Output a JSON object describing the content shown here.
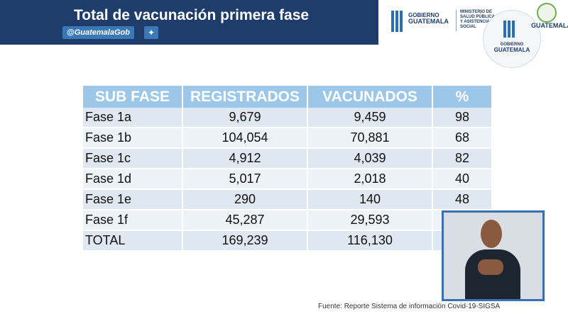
{
  "header": {
    "title": "Total de vacunación primera fase",
    "handle": "@GuatemalaGob",
    "twitter_icon": "twitter-bird"
  },
  "logos": {
    "gov_line1": "GOBIERNO",
    "gov_line2": "GUATEMALA",
    "ministry_line1": "MINISTERIO DE",
    "ministry_line2": "SALUD PÚBLICA",
    "ministry_line3": "Y ASISTENCIA",
    "ministry_line4": "SOCIAL",
    "seal_line1": "GOBIERNO",
    "seal_line2": "GUATEMALA",
    "corner_line2": "GUATEMALA"
  },
  "table": {
    "headers": [
      "SUB FASE",
      "REGISTRADOS",
      "VACUNADOS",
      "%"
    ],
    "rows": [
      [
        "Fase 1a",
        "9,679",
        "9,459",
        "98"
      ],
      [
        "Fase 1b",
        "104,054",
        "70,881",
        "68"
      ],
      [
        "Fase 1c",
        "4,912",
        "4,039",
        "82"
      ],
      [
        "Fase 1d",
        "5,017",
        "2,018",
        "40"
      ],
      [
        "Fase 1e",
        "290",
        "140",
        "48"
      ],
      [
        "Fase 1f",
        "45,287",
        "29,593",
        ""
      ],
      [
        "TOTAL",
        "169,239",
        "116,130",
        ""
      ]
    ]
  },
  "source": "Fuente: Reporte Sistema de información Covid-19-SIGSA",
  "colors": {
    "banner": "#1f3d6a",
    "table_header": "#9cc7e8",
    "row_light": "#edf2f7",
    "row_dark": "#dfe8f1",
    "interpreter_border": "#3b6fb0"
  }
}
